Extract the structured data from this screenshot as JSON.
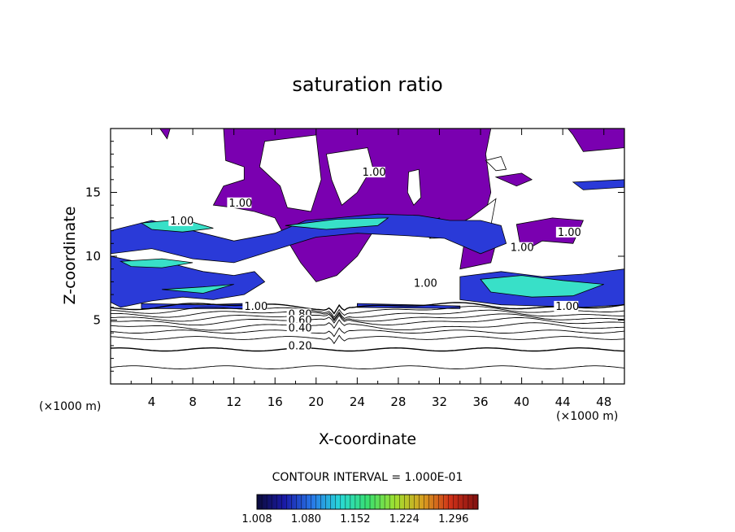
{
  "chart_data": {
    "type": "heatmap",
    "title": "saturation ratio",
    "xlabel": "X-coordinate",
    "ylabel": "Z-coordinate",
    "x_unit": "(×1000 m)",
    "y_unit": "(×1000 m)",
    "xlim": [
      0,
      50
    ],
    "ylim": [
      0,
      20
    ],
    "x_ticks": [
      4,
      8,
      12,
      16,
      20,
      24,
      28,
      32,
      36,
      40,
      44,
      48
    ],
    "y_ticks": [
      5,
      10,
      15
    ],
    "contour_interval_text": "CONTOUR INTERVAL = 1.000E-01",
    "contour_labels": [
      {
        "text": "1.00",
        "x": 11.5,
        "y": 13.9
      },
      {
        "text": "1.00",
        "x": 5.8,
        "y": 12.5
      },
      {
        "text": "1.00",
        "x": 24.5,
        "y": 16.3
      },
      {
        "text": "1.00",
        "x": 43.5,
        "y": 11.6
      },
      {
        "text": "1.00",
        "x": 38.9,
        "y": 10.4
      },
      {
        "text": "1.00",
        "x": 29.5,
        "y": 7.6
      },
      {
        "text": "1.00",
        "x": 13.0,
        "y": 5.8
      },
      {
        "text": "1.00",
        "x": 43.3,
        "y": 5.8
      },
      {
        "text": "0.80",
        "x": 17.3,
        "y": 5.2
      },
      {
        "text": "0.60",
        "x": 17.3,
        "y": 4.7
      },
      {
        "text": "0.40",
        "x": 17.3,
        "y": 4.1
      },
      {
        "text": "0.20",
        "x": 17.3,
        "y": 2.7
      }
    ],
    "colorbar": {
      "min": 1.008,
      "max": 1.332,
      "ticks": [
        "1.008",
        "1.080",
        "1.152",
        "1.224",
        "1.296"
      ],
      "tick_values": [
        1.008,
        1.08,
        1.152,
        1.224,
        1.296
      ],
      "colors": [
        "#0b0b3a",
        "#1a1aa8",
        "#2878e8",
        "#28d8d8",
        "#38e070",
        "#a0e030",
        "#d8a020",
        "#d03018",
        "#801010"
      ]
    },
    "subsaturated_contours": [
      0.1,
      0.2,
      0.3,
      0.4,
      0.5,
      0.6,
      0.7,
      0.8,
      0.9,
      1.0
    ],
    "fill_colors": {
      "upper_cloud": "#7a00b0",
      "mid_cloud": "#2a3ad8",
      "mid_cloud_core": "#38e0c8"
    }
  }
}
